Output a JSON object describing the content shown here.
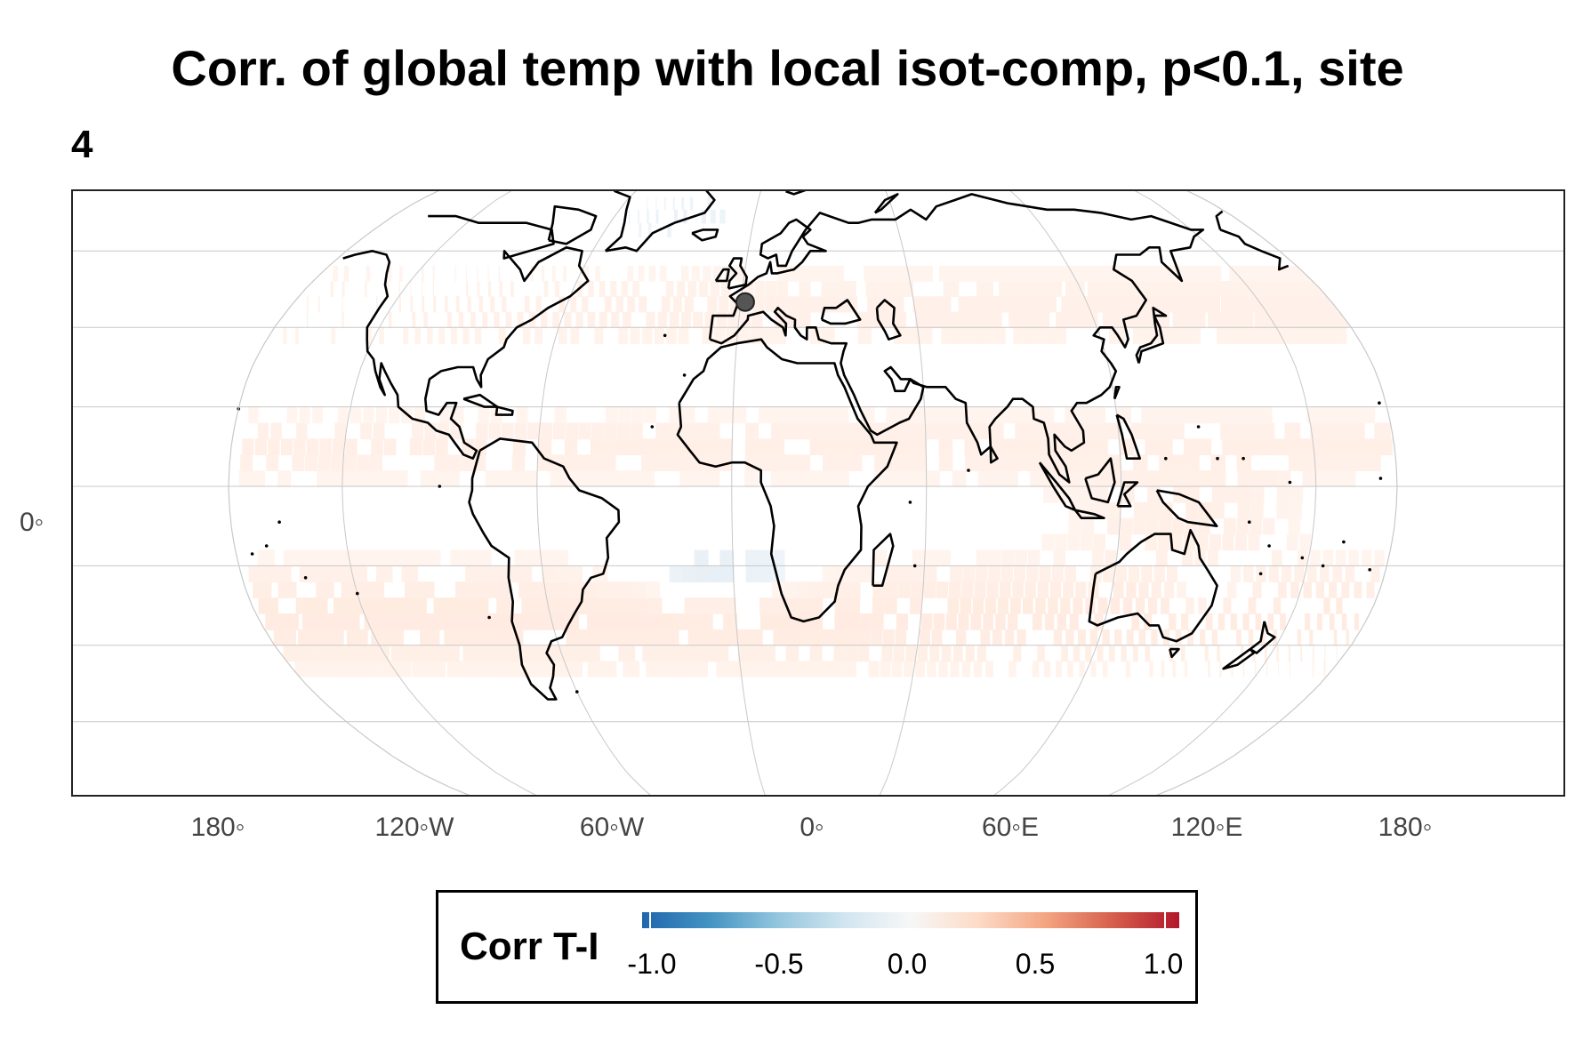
{
  "title": {
    "line1": "Corr. of global temp with local isot-comp, p<0.1, site",
    "line2": "4"
  },
  "map": {
    "projection": "robinson",
    "x_ticks": [
      "180◦",
      "120◦W",
      "60◦W",
      "0◦",
      "60◦E",
      "120◦E",
      "180◦"
    ],
    "y_ticks": [
      "0◦"
    ],
    "site_marker": {
      "lon": 1.5,
      "lat": 46.5,
      "color": "#555555"
    },
    "grid_color": "#c8c8c8",
    "coast_color": "#000000"
  },
  "legend": {
    "title": "Corr T-I",
    "ticks": [
      "-1.0",
      "-0.5",
      "0.0",
      "0.5",
      "1.0"
    ],
    "colors": [
      "#2166ac",
      "#4393c3",
      "#92c5de",
      "#d1e5f0",
      "#f7f7f7",
      "#fddbc7",
      "#f4a582",
      "#d6604d",
      "#b2182b"
    ]
  }
}
